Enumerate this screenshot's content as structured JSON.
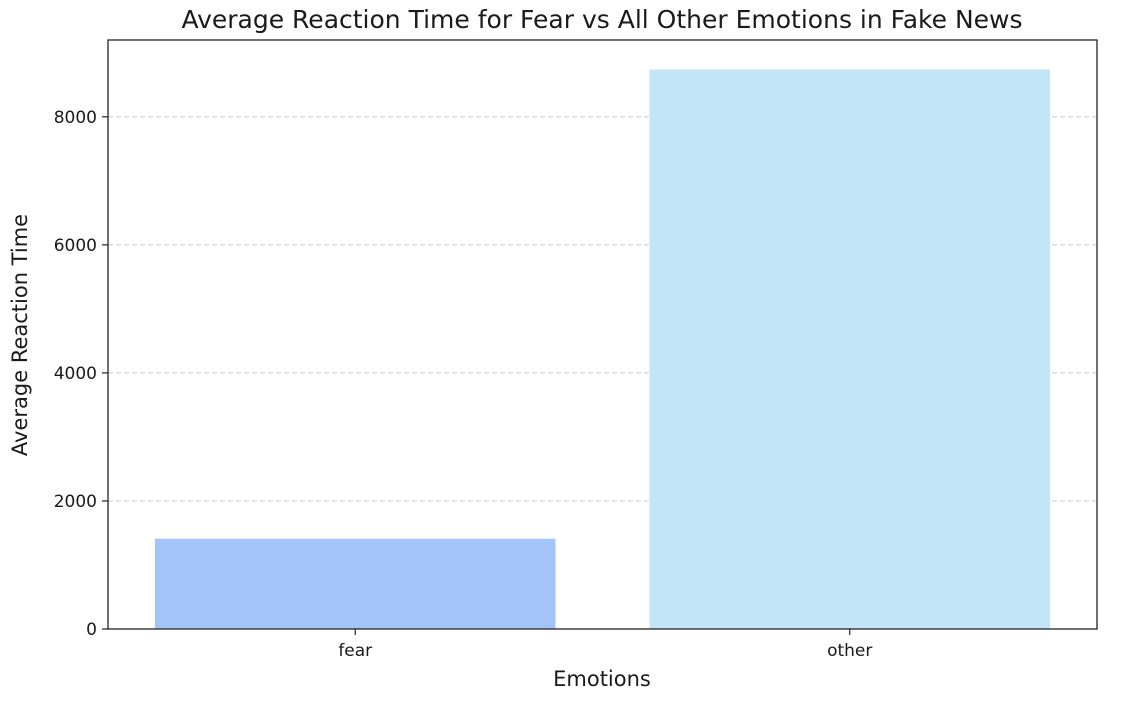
{
  "chart_data": {
    "type": "bar",
    "title": "Average Reaction Time for Fear vs All Other Emotions in Fake News",
    "xlabel": "Emotions",
    "ylabel": "Average Reaction Time",
    "categories": [
      "fear",
      "other"
    ],
    "values": [
      1410,
      8740
    ],
    "bar_colors": [
      "#a3c4f8",
      "#c2e6f8"
    ],
    "ylim": [
      0,
      9200
    ],
    "yticks": [
      0,
      2000,
      4000,
      6000,
      8000
    ],
    "ytick_labels": [
      "0",
      "2000",
      "4000",
      "6000",
      "8000"
    ],
    "grid": "y-dashed",
    "legend": "none"
  }
}
